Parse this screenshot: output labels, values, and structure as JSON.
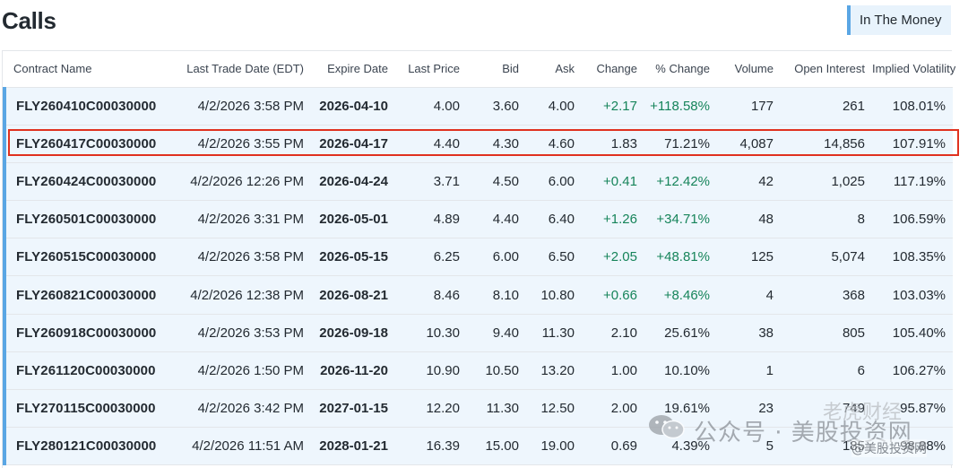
{
  "page": {
    "title": "Calls"
  },
  "filter": {
    "label": "In The Money"
  },
  "columns": [
    "Contract Name",
    "Last Trade Date (EDT)",
    "Expire Date",
    "Last Price",
    "Bid",
    "Ask",
    "Change",
    "% Change",
    "Volume",
    "Open Interest",
    "Implied Volatility"
  ],
  "rows": [
    [
      "FLY260410C00030000",
      "4/2/2026 3:58 PM",
      "2026-04-10",
      "4.00",
      "3.60",
      "4.00",
      "+2.17",
      "+118.58%",
      "177",
      "261",
      "108.01%"
    ],
    [
      "FLY260417C00030000",
      "4/2/2026 3:55 PM",
      "2026-04-17",
      "4.40",
      "4.30",
      "4.60",
      "1.83",
      "71.21%",
      "4,087",
      "14,856",
      "107.91%"
    ],
    [
      "FLY260424C00030000",
      "4/2/2026 12:26 PM",
      "2026-04-24",
      "3.71",
      "4.50",
      "6.00",
      "+0.41",
      "+12.42%",
      "42",
      "1,025",
      "117.19%"
    ],
    [
      "FLY260501C00030000",
      "4/2/2026 3:31 PM",
      "2026-05-01",
      "4.89",
      "4.40",
      "6.40",
      "+1.26",
      "+34.71%",
      "48",
      "8",
      "106.59%"
    ],
    [
      "FLY260515C00030000",
      "4/2/2026 3:58 PM",
      "2026-05-15",
      "6.25",
      "6.00",
      "6.50",
      "+2.05",
      "+48.81%",
      "125",
      "5,074",
      "108.35%"
    ],
    [
      "FLY260821C00030000",
      "4/2/2026 12:38 PM",
      "2026-08-21",
      "8.46",
      "8.10",
      "10.80",
      "+0.66",
      "+8.46%",
      "4",
      "368",
      "103.03%"
    ],
    [
      "FLY260918C00030000",
      "4/2/2026 3:53 PM",
      "2026-09-18",
      "10.30",
      "9.40",
      "11.30",
      "2.10",
      "25.61%",
      "38",
      "805",
      "105.40%"
    ],
    [
      "FLY261120C00030000",
      "4/2/2026 1:50 PM",
      "2026-11-20",
      "10.90",
      "10.50",
      "13.20",
      "1.00",
      "10.10%",
      "1",
      "6",
      "106.27%"
    ],
    [
      "FLY270115C00030000",
      "4/2/2026 3:42 PM",
      "2027-01-15",
      "12.20",
      "11.30",
      "12.50",
      "2.00",
      "19.61%",
      "23",
      "749",
      "95.87%"
    ],
    [
      "FLY280121C00030000",
      "4/2/2026 11:51 AM",
      "2028-01-21",
      "16.39",
      "15.00",
      "19.00",
      "0.69",
      "4.39%",
      "5",
      "185",
      "98.88%"
    ]
  ],
  "colors": {
    "accent": "#5aa6e4",
    "row_bg": "#eef6fd",
    "positive": "#16845a",
    "highlight": "#e0311f"
  },
  "watermark": {
    "top": "老虎财经",
    "main": "公众号 · 美股投资网",
    "sub": "@美股投资网",
    "icon": "wechat-icon"
  }
}
